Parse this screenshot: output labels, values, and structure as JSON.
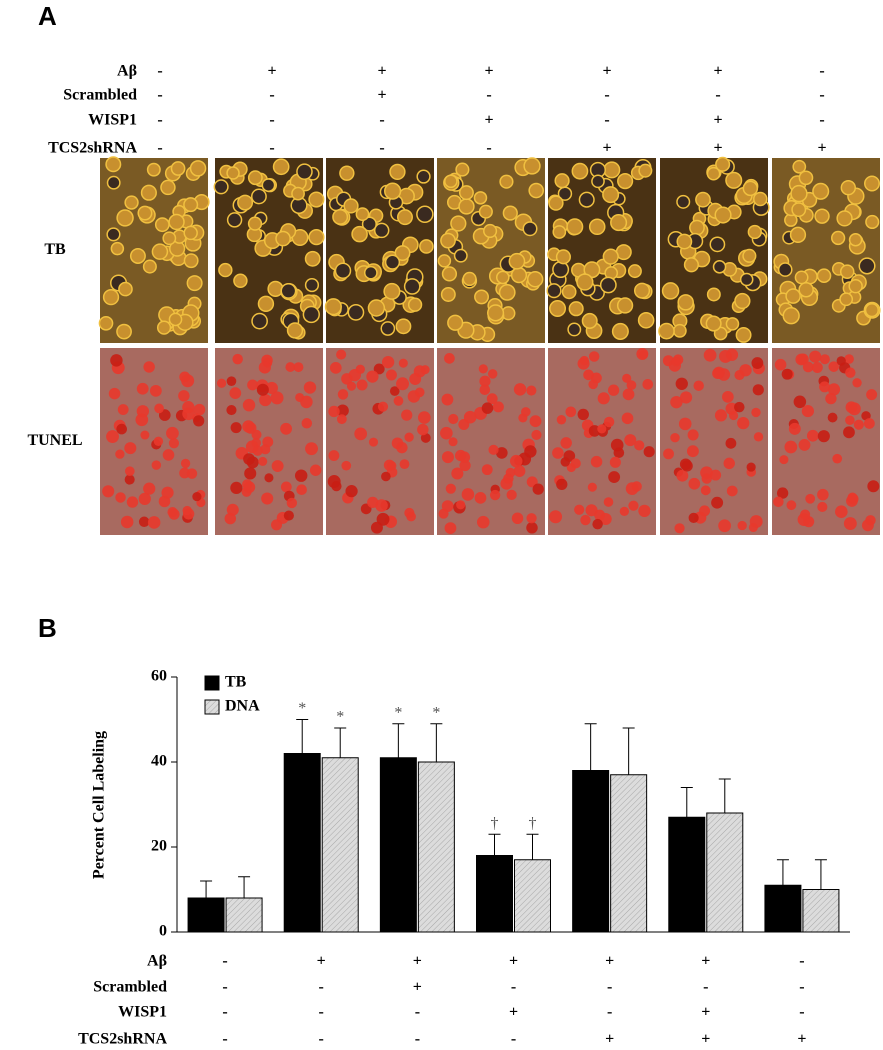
{
  "panel_a": {
    "label": "A",
    "treatments": [
      {
        "name": "Aβ",
        "signs": [
          "-",
          "+",
          "+",
          "+",
          "+",
          "+",
          "-"
        ]
      },
      {
        "name": "Scrambled",
        "signs": [
          "-",
          "-",
          "+",
          "-",
          "-",
          "-",
          "-"
        ]
      },
      {
        "name": "WISP1",
        "signs": [
          "-",
          "-",
          "-",
          "+",
          "-",
          "+",
          "-"
        ]
      },
      {
        "name": "TCS2shRNA",
        "signs": [
          "-",
          "-",
          "-",
          "-",
          "+",
          "+",
          "+"
        ]
      }
    ],
    "rows": [
      "TB",
      "TUNEL"
    ]
  },
  "chart_data": {
    "type": "bar",
    "panel_label": "B",
    "y_label": "Percent Cell Labeling",
    "categories": [
      null,
      null,
      null,
      null,
      null,
      null,
      null
    ],
    "series": [
      {
        "name": "TB",
        "color": "#000000",
        "values": [
          8,
          42,
          41,
          18,
          38,
          27,
          11
        ],
        "errors": [
          4,
          8,
          8,
          5,
          11,
          7,
          6
        ],
        "markers": [
          null,
          "*",
          "*",
          "†",
          null,
          null,
          null
        ]
      },
      {
        "name": "DNA",
        "color": "#d9d9d9",
        "values": [
          8,
          41,
          40,
          17,
          37,
          28,
          10
        ],
        "errors": [
          5,
          7,
          9,
          6,
          11,
          8,
          7
        ],
        "markers": [
          null,
          "*",
          "*",
          "†",
          null,
          null,
          null
        ]
      }
    ],
    "ylim": [
      0,
      60
    ],
    "yticks": [
      0,
      20,
      40,
      60
    ],
    "legend": "upper-left",
    "treatments": [
      {
        "name": "Aβ",
        "signs": [
          "-",
          "+",
          "+",
          "+",
          "+",
          "+",
          "-"
        ]
      },
      {
        "name": "Scrambled",
        "signs": [
          "-",
          "-",
          "+",
          "-",
          "-",
          "-",
          "-"
        ]
      },
      {
        "name": "WISP1",
        "signs": [
          "-",
          "-",
          "-",
          "+",
          "-",
          "+",
          "-"
        ]
      },
      {
        "name": "TCS2shRNA",
        "signs": [
          "-",
          "-",
          "-",
          "-",
          "+",
          "+",
          "+"
        ]
      }
    ]
  }
}
